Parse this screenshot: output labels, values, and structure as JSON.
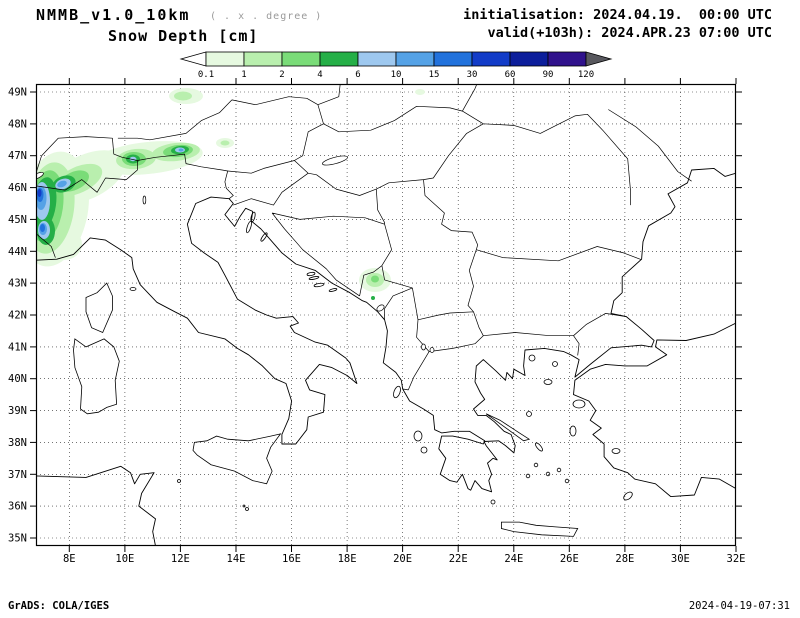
{
  "header": {
    "model_title": "NMMB_v1.0_10km",
    "model_subtitle": "( . x . degree )",
    "field_title": "Snow Depth [cm]",
    "init_line": "initialisation: 2024.04.19.  00:00 UTC",
    "valid_line": "valid(+103h): 2024.APR.23 07:00 UTC"
  },
  "colorbar": {
    "tick_labels": [
      "0.1",
      "1",
      "2",
      "4",
      "6",
      "10",
      "15",
      "30",
      "60",
      "90",
      "120"
    ],
    "segment_colors": [
      "#e6f9e0",
      "#b9efae",
      "#7adc78",
      "#25af47",
      "#9ec8ef",
      "#55a2e6",
      "#2272dc",
      "#123cc8",
      "#0c1e9b",
      "#30128c"
    ],
    "below_min_color": "#ffffff",
    "above_max_color": "#58585e",
    "units": "cm"
  },
  "map": {
    "lat_labels": [
      "49N",
      "48N",
      "47N",
      "46N",
      "45N",
      "44N",
      "43N",
      "42N",
      "41N",
      "40N",
      "39N",
      "38N",
      "37N",
      "36N",
      "35N"
    ],
    "lon_labels": [
      "8E",
      "10E",
      "12E",
      "14E",
      "16E",
      "18E",
      "20E",
      "22E",
      "24E",
      "26E",
      "28E",
      "30E",
      "32E"
    ]
  },
  "footer": {
    "left": "GrADS: COLA/IGES",
    "right": "2024-04-19-07:31"
  }
}
